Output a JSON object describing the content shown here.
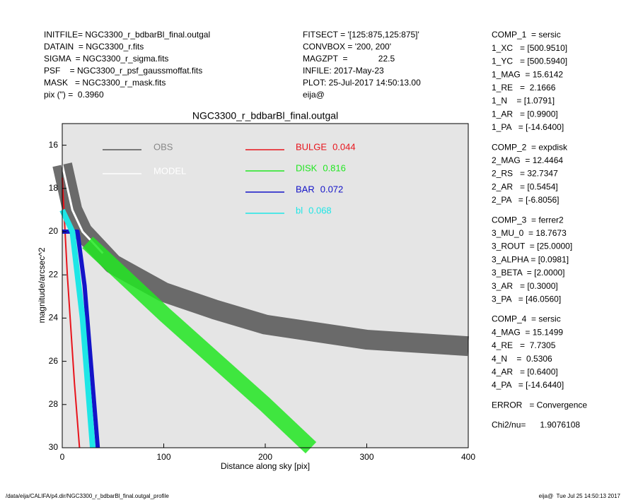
{
  "header_left": [
    "INITFILE= NGC3300_r_bdbarBl_final.outgal",
    "DATAIN  = NGC3300_r.fits",
    "SIGMA  = NGC3300_r_sigma.fits",
    "PSF    = NGC3300_r_psf_gaussmoffat.fits",
    "MASK   = NGC3300_r_mask.fits",
    "pix (\") =  0.3960"
  ],
  "header_mid": [
    "FITSECT = '[125:875,125:875]'",
    "CONVBOX = '200, 200'",
    "MAGZPT  =             22.5",
    "INFILE: 2017-May-23",
    "PLOT: 25-Jul-2017 14:50:13.00",
    "eija@"
  ],
  "components": [
    [
      "COMP_1  = sersic",
      "1_XC   = [500.9510]",
      "1_YC   = [500.5940]",
      "1_MAG  = 15.6142",
      "1_RE   =  2.1666",
      "1_N    = [1.0791]",
      "1_AR   = [0.9900]",
      "1_PA   = [-14.6400]"
    ],
    [
      "COMP_2  = expdisk",
      "2_MAG  = 12.4464",
      "2_RS   = 32.7347",
      "2_AR   = [0.5454]",
      "2_PA   = [-6.8056]"
    ],
    [
      "COMP_3  = ferrer2",
      "3_MU_0  = 18.7673",
      "3_ROUT  = [25.0000]",
      "3_ALPHA = [0.0981]",
      "3_BETA  = [2.0000]",
      "3_AR   = [0.3000]",
      "3_PA   = [46.0560]"
    ],
    [
      "COMP_4  = sersic",
      "4_MAG  = 15.1499",
      "4_RE   =  7.7305",
      "4_N    =  0.5306",
      "4_AR   = [0.6400]",
      "4_PA   = [-14.6440]"
    ],
    [
      "ERROR   = Convergence"
    ],
    [
      "Chi2/nu=      1.9076108"
    ]
  ],
  "footer_left": "/data/eija/CALIFA/p4.dir/NGC3300_r_bdbarBl_final.outgal_profile",
  "footer_right": "eija@  Tue Jul 25 14:50:13 2017",
  "chart_data": {
    "type": "line",
    "title": "NGC3300_r_bdbarBl_final.outgal",
    "x_label": "Distance along sky [pix]",
    "y_label": "magnitude/arcsec^2",
    "xlim": [
      0,
      400
    ],
    "ylim": [
      30,
      15
    ],
    "y_inverted": true,
    "xticks": [
      0,
      100,
      200,
      300,
      400
    ],
    "yticks": [
      16,
      18,
      20,
      22,
      24,
      26,
      28,
      30
    ],
    "series": [
      {
        "name": "OBS",
        "color": "#555555",
        "x": [
          0,
          10,
          20,
          50,
          100,
          150,
          200,
          300,
          400
        ],
        "y": [
          16.9,
          19,
          20,
          21.5,
          22.8,
          23.6,
          24.3,
          25,
          25.3
        ]
      },
      {
        "name": "MODEL",
        "color": "#ffffff",
        "x": [
          0,
          10,
          20,
          40
        ],
        "y": [
          16.9,
          19,
          20,
          21
        ]
      },
      {
        "name": "BULGE",
        "color": "#e8141c",
        "fraction": 0.044,
        "x": [
          0,
          5,
          12,
          17
        ],
        "y": [
          17.5,
          22,
          27,
          30
        ]
      },
      {
        "name": "DISK",
        "color": "#22e622",
        "fraction": 0.816,
        "x": [
          25,
          100,
          200,
          245
        ],
        "y": [
          20.5,
          23.8,
          28,
          30
        ]
      },
      {
        "name": "BAR",
        "color": "#1414c8",
        "fraction": 0.072,
        "x": [
          0,
          15,
          22,
          35
        ],
        "y": [
          20,
          20,
          22.5,
          30
        ]
      },
      {
        "name": "bl",
        "color": "#1ee6e6",
        "fraction": 0.068,
        "x": [
          0,
          10,
          20,
          30
        ],
        "y": [
          19,
          20,
          24,
          30
        ]
      }
    ]
  }
}
